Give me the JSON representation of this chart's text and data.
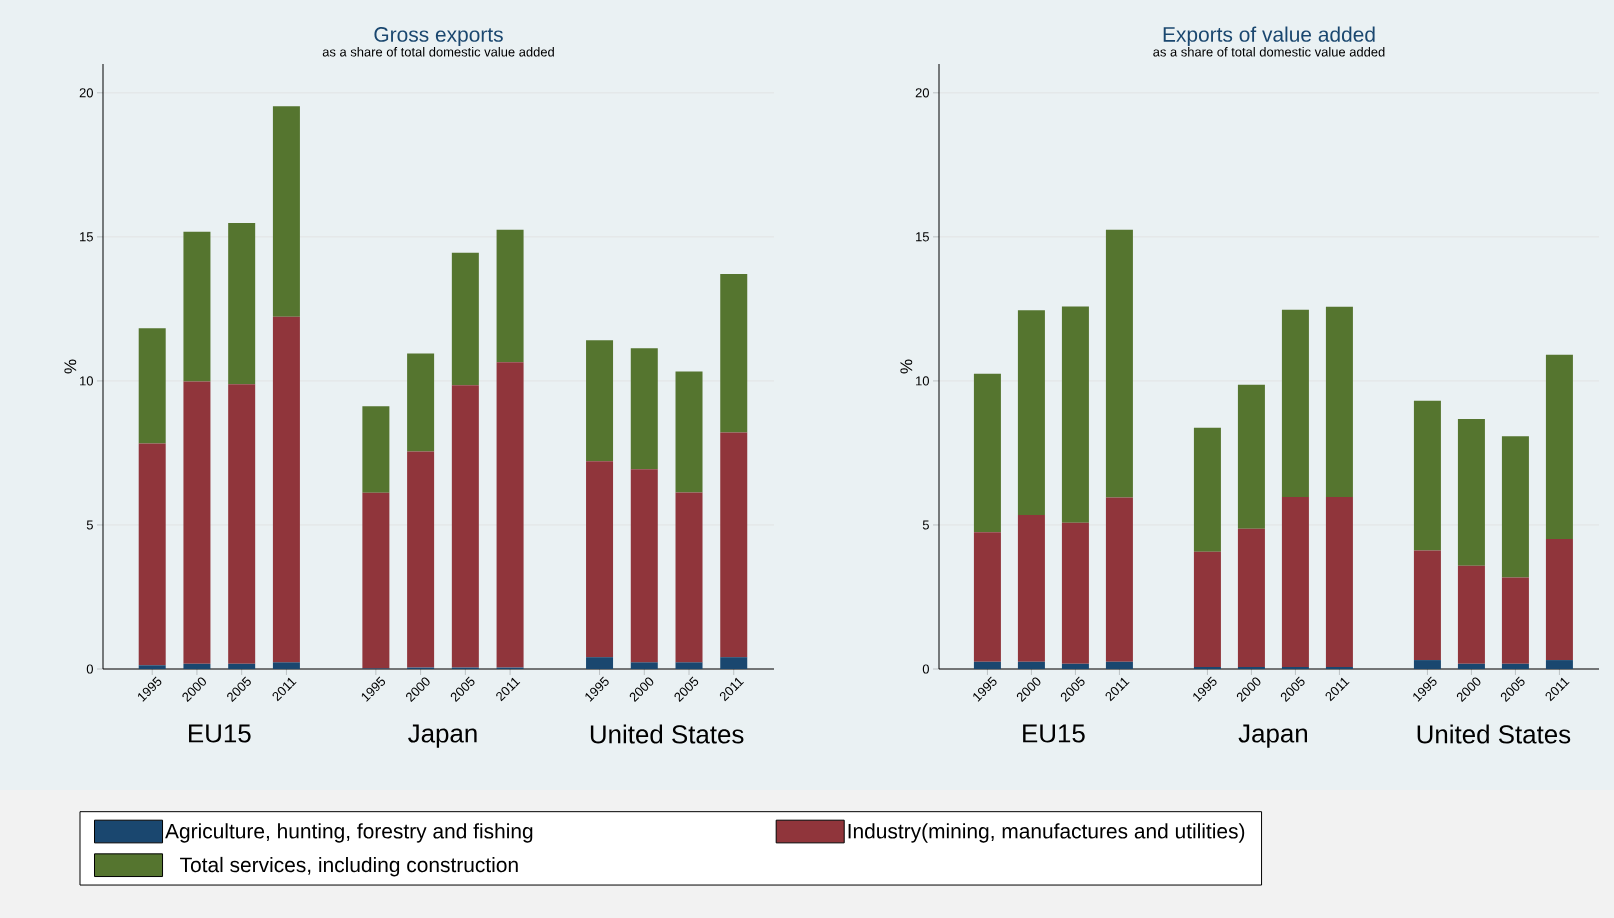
{
  "chart_data": [
    {
      "type": "bar",
      "stacked": true,
      "title": "Gross exports",
      "subtitle": "as a share of total domestic value added",
      "ylabel": "%",
      "categories": [
        "1995",
        "2000",
        "2005",
        "2011",
        null,
        "1995",
        "2000",
        "2005",
        "2011",
        null,
        "1995",
        "2000",
        "2005",
        "2011"
      ],
      "series": [
        {
          "name": "Agriculture, hunting, forestry and fishing",
          "color": "#1a476f",
          "values": [
            0.13,
            0.18,
            0.18,
            0.23,
            null,
            0.02,
            0.05,
            0.05,
            0.05,
            null,
            0.41,
            0.23,
            0.23,
            0.41
          ]
        },
        {
          "name": "Industry(mining, manufactures and utilities)",
          "color": "#90353b",
          "values": [
            7.7,
            9.8,
            9.7,
            12.0,
            null,
            6.1,
            7.5,
            9.8,
            10.6,
            null,
            6.8,
            6.7,
            5.9,
            7.8
          ]
        },
        {
          "name": "Total services, including construction",
          "color": "#55752f",
          "values": [
            4.0,
            5.2,
            5.6,
            7.3,
            null,
            3.0,
            3.4,
            4.6,
            4.6,
            null,
            4.2,
            4.2,
            4.2,
            5.5
          ]
        }
      ],
      "annotations": [
        "EU15",
        "Japan",
        "United States"
      ],
      "ylim": [
        0,
        21
      ],
      "yticks": [
        0,
        5,
        10,
        15,
        20
      ],
      "grid": "y",
      "legend": "bottom"
    },
    {
      "type": "bar",
      "stacked": true,
      "title": "Exports of value added",
      "subtitle": "as a share of total domestic value added",
      "ylabel": "%",
      "categories": [
        "1995",
        "2000",
        "2005",
        "2011",
        null,
        "1995",
        "2000",
        "2005",
        "2011",
        null,
        "1995",
        "2000",
        "2005",
        "2011"
      ],
      "series": [
        {
          "color": "#1a476f",
          "values": [
            0.25,
            0.25,
            0.18,
            0.25,
            null,
            0.07,
            0.07,
            0.07,
            0.07,
            null,
            0.31,
            0.18,
            0.18,
            0.31
          ]
        },
        {
          "color": "#90353b",
          "values": [
            4.5,
            5.1,
            4.9,
            5.7,
            null,
            4.0,
            4.8,
            5.9,
            5.9,
            null,
            3.8,
            3.4,
            3.0,
            4.2
          ]
        },
        {
          "color": "#55752f",
          "values": [
            5.5,
            7.1,
            7.5,
            9.3,
            null,
            4.3,
            5.0,
            6.5,
            6.6,
            null,
            5.2,
            5.1,
            4.9,
            6.4
          ]
        }
      ],
      "annotations": [
        "EU15",
        "Japan",
        "United States"
      ],
      "ylim": [
        0,
        21
      ],
      "yticks": [
        0,
        5,
        10,
        15,
        20
      ],
      "grid": "y"
    }
  ]
}
